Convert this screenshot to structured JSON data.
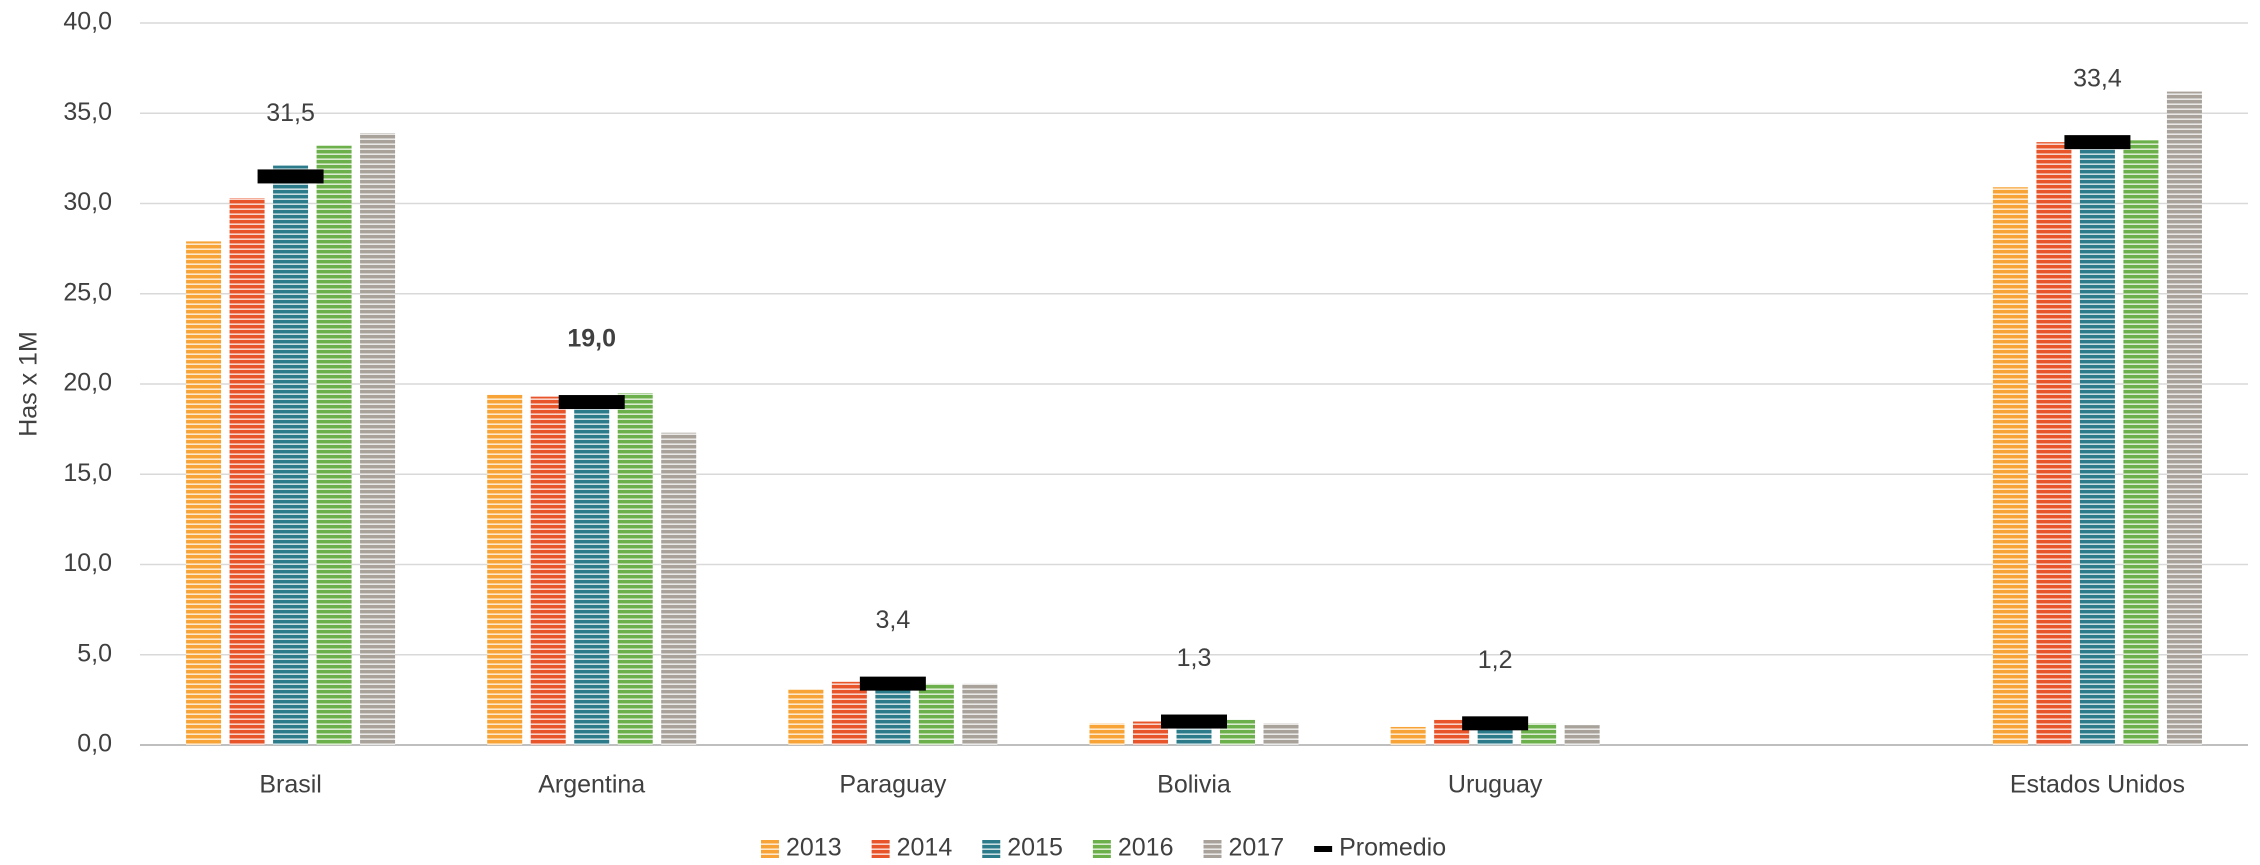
{
  "chart_data": {
    "type": "bar",
    "ylabel": "Has x 1M",
    "categories": [
      "Brasil",
      "Argentina",
      "Paraguay",
      "Bolivia",
      "Uruguay",
      null,
      "Estados Unidos"
    ],
    "series": [
      {
        "name": "2013",
        "color": "#F7A335",
        "values": [
          27.9,
          19.4,
          3.1,
          1.2,
          1.0,
          null,
          30.9
        ]
      },
      {
        "name": "2014",
        "color": "#E8552B",
        "values": [
          30.3,
          19.3,
          3.5,
          1.3,
          1.4,
          null,
          33.4
        ]
      },
      {
        "name": "2015",
        "color": "#2B7B8A",
        "values": [
          32.1,
          19.2,
          3.6,
          1.3,
          1.3,
          null,
          33.5
        ]
      },
      {
        "name": "2016",
        "color": "#6BB04A",
        "values": [
          33.2,
          19.5,
          3.4,
          1.4,
          1.2,
          null,
          33.5
        ]
      },
      {
        "name": "2017",
        "color": "#A8A29B",
        "values": [
          33.9,
          17.3,
          3.4,
          1.2,
          1.1,
          null,
          36.2
        ]
      },
      {
        "name": "Promedio",
        "color": "#000000",
        "marker": "dash",
        "values": [
          31.5,
          19.0,
          3.4,
          1.3,
          1.2,
          null,
          33.4
        ],
        "value_labels": [
          "31,5",
          "19,0",
          "3,4",
          "1,3",
          "1,2",
          null,
          "33,4"
        ]
      }
    ],
    "ylim": [
      0,
      40
    ],
    "yticks": [
      {
        "value": 0,
        "label": "0,0"
      },
      {
        "value": 5,
        "label": "5,0"
      },
      {
        "value": 10,
        "label": "10,0"
      },
      {
        "value": 15,
        "label": "15,0"
      },
      {
        "value": 20,
        "label": "20,0"
      },
      {
        "value": 25,
        "label": "25,0"
      },
      {
        "value": 30,
        "label": "30,0"
      },
      {
        "value": 35,
        "label": "35,0"
      },
      {
        "value": 40,
        "label": "40,0"
      }
    ],
    "grid": true,
    "legend": "bottom"
  }
}
